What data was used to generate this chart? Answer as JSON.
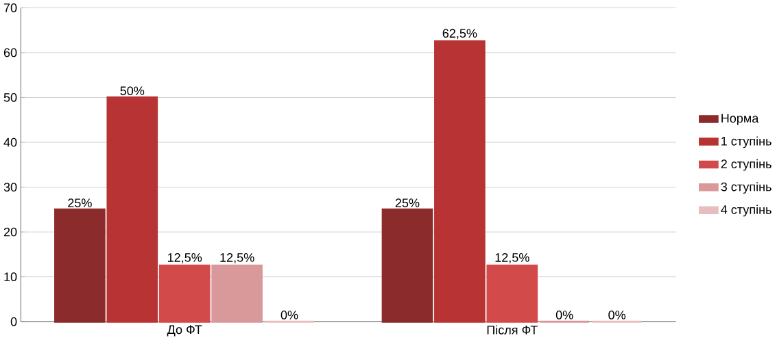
{
  "chart_data": {
    "type": "bar",
    "categories": [
      "До ФТ",
      "Після ФТ"
    ],
    "series": [
      {
        "name": "Норма",
        "color": "#8c2b2b",
        "values": [
          25,
          25
        ],
        "value_labels": [
          "25%",
          "25%"
        ]
      },
      {
        "name": "1 ступінь",
        "color": "#b83333",
        "values": [
          50,
          62.5
        ],
        "value_labels": [
          "50%",
          "62,5%"
        ]
      },
      {
        "name": "2 ступінь",
        "color": "#d24a4a",
        "values": [
          12.5,
          12.5
        ],
        "value_labels": [
          "12,5%",
          "12,5%"
        ]
      },
      {
        "name": "3 ступінь",
        "color": "#d9999b",
        "values": [
          12.5,
          0
        ],
        "value_labels": [
          "12,5%",
          "0%"
        ]
      },
      {
        "name": "4 ступінь",
        "color": "#e8bdbd",
        "values": [
          0,
          0
        ],
        "value_labels": [
          "0%",
          "0%"
        ]
      }
    ],
    "ylim": [
      0,
      70
    ],
    "yticks": [
      0,
      10,
      20,
      30,
      40,
      50,
      60,
      70
    ],
    "grid": "y",
    "legend": "right"
  }
}
